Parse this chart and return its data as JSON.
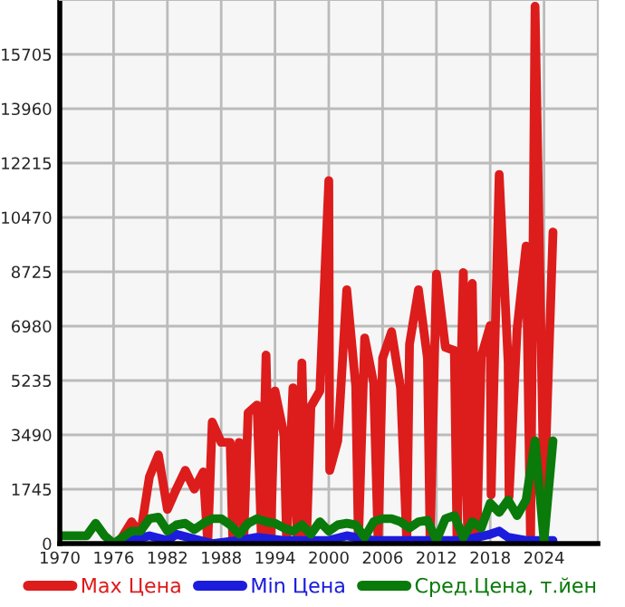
{
  "chart_data": {
    "type": "line",
    "xlim": [
      1970,
      2030
    ],
    "xticks": [
      1970,
      1976,
      1982,
      1988,
      1994,
      2000,
      2006,
      2012,
      2018,
      2024
    ],
    "ylim": [
      0,
      17450
    ],
    "yticks": [
      0,
      1745,
      3490,
      5235,
      6980,
      8725,
      10470,
      12215,
      13960,
      15705
    ],
    "grid": true,
    "legend": "bottom",
    "line_style": "solid",
    "marker": "none",
    "series": [
      {
        "name": "Max Цена",
        "color": "#dd1c1c",
        "x": [
          1976.5,
          1978,
          1979,
          1980,
          1981,
          1982,
          1983,
          1984,
          1985,
          1986,
          1986.5,
          1987,
          1988,
          1989,
          1989.3,
          1990,
          1990.5,
          1991,
          1992,
          1992.5,
          1993,
          1993.5,
          1994,
          1995,
          1995.3,
          1996,
          1996.5,
          1997,
          1997.5,
          1998,
          1999,
          2000,
          2000.1,
          2001,
          2002,
          2003,
          2003.3,
          2004,
          2005,
          2005.5,
          2006,
          2007,
          2008,
          2008.7,
          2009,
          2010,
          2011,
          2011.3,
          2012,
          2013,
          2014,
          2014.3,
          2015,
          2015.5,
          2016,
          2016.5,
          2017,
          2018,
          2018.1,
          2019,
          2020,
          2020.1,
          2021,
          2022,
          2022.5,
          2023,
          2024,
          2025
        ],
        "values": [
          0,
          700,
          300,
          2150,
          2850,
          1100,
          1750,
          2350,
          1750,
          2300,
          0,
          3900,
          3250,
          3250,
          0,
          3250,
          0,
          4200,
          4450,
          0,
          6050,
          0,
          4900,
          3500,
          0,
          5000,
          0,
          5800,
          0,
          4400,
          4900,
          11650,
          2350,
          3300,
          8150,
          5060,
          0,
          6600,
          5150,
          0,
          5950,
          6800,
          5000,
          0,
          6400,
          8150,
          5950,
          0,
          8650,
          6300,
          6200,
          0,
          8700,
          0,
          8350,
          0,
          6000,
          7000,
          1560,
          11850,
          5800,
          1500,
          6900,
          9550,
          0,
          17250,
          1300,
          10000
        ]
      },
      {
        "name": "Min Цена",
        "color": "#1c1cdd",
        "x": [
          1976,
          1978,
          1980,
          1982,
          1983,
          1985,
          1987,
          1990,
          1992,
          1995,
          1998,
          2000,
          2002,
          2005,
          2010,
          2015,
          2018,
          2019,
          2020,
          2022,
          2025
        ],
        "values": [
          0,
          100,
          250,
          100,
          300,
          150,
          0,
          100,
          200,
          100,
          100,
          100,
          250,
          100,
          100,
          100,
          300,
          400,
          200,
          100,
          100
        ]
      },
      {
        "name": "Сред.Цена, т.йен",
        "color": "#0a7a0a",
        "x": [
          1970,
          1971,
          1972,
          1973,
          1974,
          1975,
          1976,
          1977,
          1978,
          1979,
          1980,
          1981,
          1982,
          1983,
          1984,
          1985,
          1986,
          1987,
          1988,
          1989,
          1990,
          1991,
          1992,
          1993,
          1994,
          1995,
          1996,
          1997,
          1998,
          1999,
          2000,
          2001,
          2002,
          2003,
          2004,
          2005,
          2006,
          2007,
          2008,
          2009,
          2010,
          2011,
          2012,
          2013,
          2014,
          2015,
          2016,
          2017,
          2018,
          2019,
          2020,
          2021,
          2022,
          2023,
          2024,
          2025
        ],
        "values": [
          250,
          250,
          250,
          250,
          650,
          250,
          0,
          200,
          400,
          400,
          800,
          850,
          400,
          600,
          650,
          450,
          650,
          800,
          800,
          600,
          300,
          650,
          800,
          700,
          650,
          500,
          400,
          600,
          300,
          700,
          400,
          600,
          650,
          600,
          200,
          700,
          800,
          800,
          700,
          500,
          700,
          750,
          100,
          800,
          900,
          200,
          700,
          500,
          1300,
          1000,
          1400,
          900,
          1400,
          3300,
          100,
          3300
        ]
      }
    ]
  }
}
